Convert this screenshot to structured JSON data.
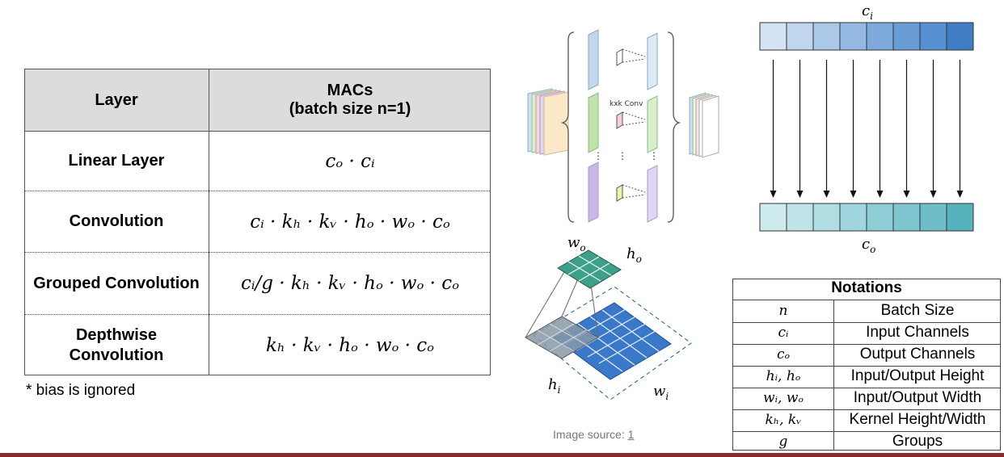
{
  "macs_table": {
    "header": {
      "layer": "Layer",
      "macs_line1": "MACs",
      "macs_line2": "(batch size n=1)"
    },
    "rows": [
      {
        "layer": "Linear Layer",
        "formula": "cₒ · cᵢ"
      },
      {
        "layer": "Convolution",
        "formula": "cᵢ · kₕ · kᵥ · hₒ · wₒ · cₒ"
      },
      {
        "layer": "Grouped Convolution",
        "formula": "cᵢ/g · kₕ · kᵥ · hₒ · wₒ · cₒ"
      },
      {
        "layer_line1": "Depthwise",
        "layer_line2": "Convolution",
        "formula": "kₕ · kᵥ · hₒ · wₒ · cₒ"
      }
    ],
    "footnote": "* bias is ignored"
  },
  "grouped_conv_diagram": {
    "conv_label": "kxk Conv"
  },
  "depthwise_diagram": {
    "w_o": "w",
    "h_o": "h",
    "h_i": "h",
    "w_i": "w",
    "sub_o": "o",
    "sub_i": "i"
  },
  "channel_diagram": {
    "top_label": "c",
    "top_sub": "i",
    "bottom_label": "c",
    "bottom_sub": "o"
  },
  "image_source": {
    "prefix": "Image source: ",
    "link": "1"
  },
  "notations": {
    "title": "Notations",
    "rows": [
      {
        "symbol": "n",
        "desc": "Batch Size"
      },
      {
        "symbol": "cᵢ",
        "desc": "Input Channels"
      },
      {
        "symbol": "cₒ",
        "desc": "Output Channels"
      },
      {
        "symbol": "hᵢ, hₒ",
        "desc": "Input/Output Height"
      },
      {
        "symbol": "wᵢ, wₒ",
        "desc": "Input/Output Width"
      },
      {
        "symbol": "kₕ, kᵥ",
        "desc": "Kernel Height/Width"
      },
      {
        "symbol": "g",
        "desc": "Groups"
      }
    ]
  },
  "colors": {
    "top_channels": [
      "#d4e3f3",
      "#c0d6ee",
      "#aac8e8",
      "#93b9e2",
      "#7eaadb",
      "#6a9dd6",
      "#5690d0",
      "#3f7dc4"
    ],
    "bottom_channels": [
      "#cdeaed",
      "#bfe4e8",
      "#afdde2",
      "#9fd5dc",
      "#8ecdd5",
      "#7ec6cf",
      "#6ebec8",
      "#56b2bd"
    ],
    "bottom_bar": "#8c2a2a"
  }
}
